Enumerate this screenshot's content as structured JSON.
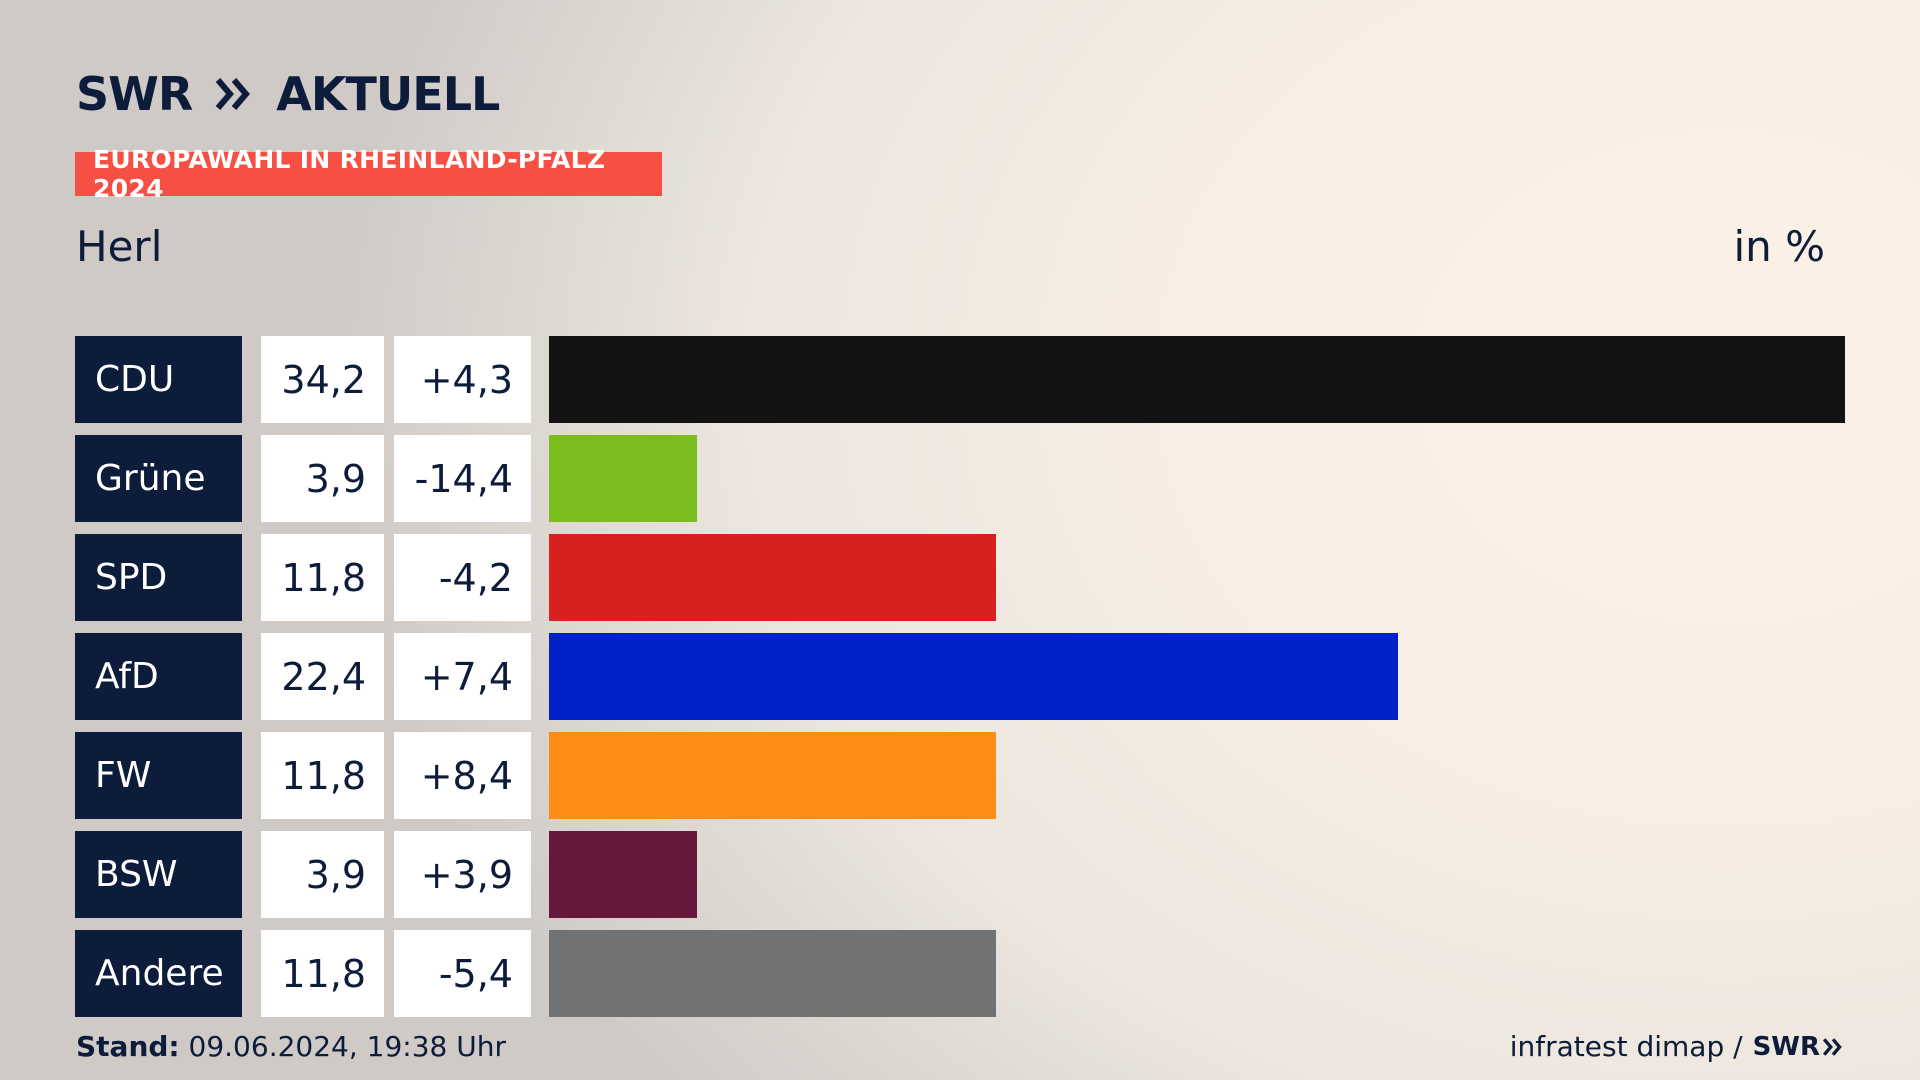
{
  "brand": {
    "logo_swr": "SWR",
    "logo_aktuell": "AKTUELL",
    "footer_logo": "SWR"
  },
  "header": {
    "badge": "EUROPAWAHL IN RHEINLAND-PFALZ 2024",
    "region": "Herl",
    "unit": "in %"
  },
  "footer": {
    "stand_label": "Stand:",
    "stand_value": "09.06.2024, 19:38 Uhr",
    "source": "infratest dimap /"
  },
  "colors": {
    "navy": "#0c1c3a",
    "badge": "#f55043"
  },
  "chart_data": {
    "type": "bar",
    "orientation": "horizontal",
    "unit": "in %",
    "categories": [
      "CDU",
      "Grüne",
      "SPD",
      "AfD",
      "FW",
      "BSW",
      "Andere"
    ],
    "values": [
      34.2,
      3.9,
      11.8,
      22.4,
      11.8,
      3.9,
      11.8
    ],
    "value_labels": [
      "34,2",
      "3,9",
      "11,8",
      "22,4",
      "11,8",
      "3,9",
      "11,8"
    ],
    "change_labels": [
      "+4,3",
      "-14,4",
      "-4,2",
      "+7,4",
      "+8,4",
      "+3,9",
      "-5,4"
    ],
    "changes": [
      4.3,
      -14.4,
      -4.2,
      7.4,
      8.4,
      3.9,
      -5.4
    ],
    "colors": [
      "#131313",
      "#7bbd1e",
      "#d72020",
      "#0022c8",
      "#ff8c16",
      "#66183c",
      "#717273"
    ],
    "xlim": [
      0,
      34.2
    ]
  }
}
